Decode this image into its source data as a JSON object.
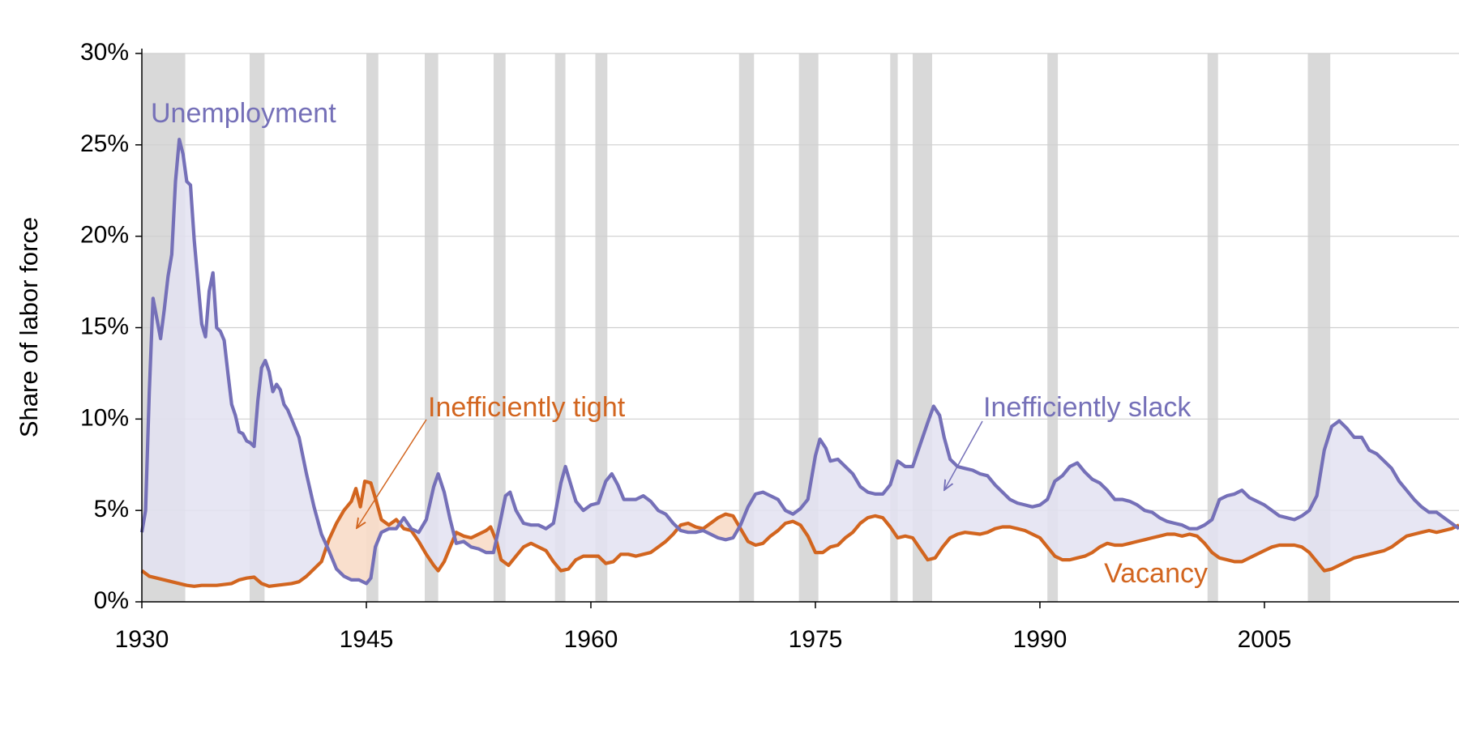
{
  "chart_data": {
    "type": "line",
    "y_label": "Share of labor force",
    "xlim": [
      1930,
      2018
    ],
    "ylim": [
      0,
      30
    ],
    "xticks": [
      1930,
      1945,
      1960,
      1975,
      1990,
      2005
    ],
    "yticks": [
      {
        "value": 0,
        "label": "0%"
      },
      {
        "value": 5,
        "label": "5%"
      },
      {
        "value": 10,
        "label": "10%"
      },
      {
        "value": 15,
        "label": "15%"
      },
      {
        "value": 20,
        "label": "20%"
      },
      {
        "value": 25,
        "label": "25%"
      },
      {
        "value": 30,
        "label": "30%"
      }
    ],
    "grid": true,
    "recession_color": "#d9d9d9",
    "recessions": [
      [
        1930.0,
        1932.9
      ],
      [
        1937.2,
        1938.2
      ],
      [
        1945.0,
        1945.8
      ],
      [
        1948.9,
        1949.8
      ],
      [
        1953.5,
        1954.3
      ],
      [
        1957.6,
        1958.3
      ],
      [
        1960.3,
        1961.1
      ],
      [
        1969.9,
        1970.9
      ],
      [
        1973.9,
        1975.2
      ],
      [
        1980.0,
        1980.5
      ],
      [
        1981.5,
        1982.8
      ],
      [
        1990.5,
        1991.2
      ],
      [
        2001.2,
        2001.9
      ],
      [
        2007.9,
        2009.4
      ]
    ],
    "slack_fill": "#e3e2f1",
    "tight_fill": "#f8dcc8",
    "series": [
      {
        "name": "Unemployment",
        "color": "#7570b8",
        "x": [
          1930.0,
          1930.25,
          1930.5,
          1930.75,
          1931.0,
          1931.25,
          1931.5,
          1931.75,
          1932.0,
          1932.25,
          1932.5,
          1932.75,
          1933.0,
          1933.25,
          1933.5,
          1933.75,
          1934.0,
          1934.25,
          1934.5,
          1934.75,
          1935.0,
          1935.25,
          1935.5,
          1935.75,
          1936.0,
          1936.25,
          1936.5,
          1936.75,
          1937.0,
          1937.25,
          1937.5,
          1937.75,
          1938.0,
          1938.25,
          1938.5,
          1938.75,
          1939.0,
          1939.25,
          1939.5,
          1939.75,
          1940.0,
          1940.5,
          1941.0,
          1941.5,
          1942.0,
          1942.5,
          1943.0,
          1943.5,
          1944.0,
          1944.5,
          1945.0,
          1945.3,
          1945.6,
          1946.0,
          1946.5,
          1947.0,
          1947.5,
          1948.0,
          1948.5,
          1949.0,
          1949.5,
          1949.8,
          1950.2,
          1950.6,
          1951.0,
          1951.5,
          1952.0,
          1952.5,
          1953.0,
          1953.5,
          1953.9,
          1954.3,
          1954.6,
          1955.0,
          1955.5,
          1956.0,
          1956.5,
          1957.0,
          1957.5,
          1958.0,
          1958.3,
          1958.7,
          1959.0,
          1959.5,
          1960.0,
          1960.5,
          1961.0,
          1961.4,
          1961.8,
          1962.2,
          1963.0,
          1963.5,
          1964.0,
          1964.5,
          1965.0,
          1965.5,
          1966.0,
          1966.5,
          1967.0,
          1967.5,
          1968.0,
          1968.5,
          1969.0,
          1969.5,
          1970.0,
          1970.5,
          1971.0,
          1971.5,
          1972.0,
          1972.5,
          1973.0,
          1973.5,
          1974.0,
          1974.5,
          1975.0,
          1975.3,
          1975.7,
          1976.0,
          1976.5,
          1977.0,
          1977.5,
          1978.0,
          1978.5,
          1979.0,
          1979.5,
          1980.0,
          1980.5,
          1981.0,
          1981.5,
          1982.0,
          1982.5,
          1982.9,
          1983.3,
          1983.6,
          1984.0,
          1984.5,
          1985.0,
          1985.5,
          1986.0,
          1986.5,
          1987.0,
          1987.5,
          1988.0,
          1988.5,
          1989.0,
          1989.5,
          1990.0,
          1990.5,
          1991.0,
          1991.5,
          1992.0,
          1992.5,
          1993.0,
          1993.5,
          1994.0,
          1994.5,
          1995.0,
          1995.5,
          1996.0,
          1996.5,
          1997.0,
          1997.5,
          1998.0,
          1998.5,
          1999.0,
          1999.5,
          2000.0,
          2000.5,
          2001.0,
          2001.5,
          2002.0,
          2002.5,
          2003.0,
          2003.5,
          2004.0,
          2004.5,
          2005.0,
          2005.5,
          2006.0,
          2006.5,
          2007.0,
          2007.5,
          2008.0,
          2008.5,
          2009.0,
          2009.5,
          2010.0,
          2010.5,
          2011.0,
          2011.5,
          2012.0,
          2012.5,
          2013.0,
          2013.5,
          2014.0,
          2014.5,
          2015.0,
          2015.5,
          2016.0,
          2016.5,
          2017.0,
          2017.5,
          2018.0
        ],
        "values": [
          3.8,
          5.0,
          11.5,
          16.6,
          15.5,
          14.4,
          16.0,
          17.8,
          19.0,
          23.0,
          25.3,
          24.5,
          23.0,
          22.8,
          19.8,
          17.5,
          15.2,
          14.5,
          17.0,
          18.0,
          15.0,
          14.8,
          14.3,
          12.5,
          10.8,
          10.2,
          9.3,
          9.2,
          8.8,
          8.7,
          8.5,
          11.0,
          12.8,
          13.2,
          12.6,
          11.5,
          11.9,
          11.6,
          10.8,
          10.5,
          10.0,
          9.0,
          7.0,
          5.2,
          3.7,
          2.8,
          1.8,
          1.4,
          1.2,
          1.2,
          1.0,
          1.3,
          3.0,
          3.8,
          4.0,
          4.0,
          4.6,
          4.0,
          3.8,
          4.5,
          6.3,
          7.0,
          6.0,
          4.5,
          3.2,
          3.3,
          3.0,
          2.9,
          2.7,
          2.7,
          4.2,
          5.8,
          6.0,
          5.0,
          4.3,
          4.2,
          4.2,
          4.0,
          4.3,
          6.5,
          7.4,
          6.3,
          5.5,
          5.0,
          5.3,
          5.4,
          6.6,
          7.0,
          6.4,
          5.6,
          5.6,
          5.8,
          5.5,
          5.0,
          4.8,
          4.3,
          3.9,
          3.8,
          3.8,
          3.9,
          3.7,
          3.5,
          3.4,
          3.5,
          4.2,
          5.2,
          5.9,
          6.0,
          5.8,
          5.6,
          5.0,
          4.8,
          5.1,
          5.6,
          8.0,
          8.9,
          8.4,
          7.7,
          7.8,
          7.4,
          7.0,
          6.3,
          6.0,
          5.9,
          5.9,
          6.4,
          7.7,
          7.4,
          7.4,
          8.6,
          9.8,
          10.7,
          10.2,
          9.0,
          7.8,
          7.4,
          7.3,
          7.2,
          7.0,
          6.9,
          6.4,
          6.0,
          5.6,
          5.4,
          5.3,
          5.2,
          5.3,
          5.6,
          6.6,
          6.9,
          7.4,
          7.6,
          7.1,
          6.7,
          6.5,
          6.1,
          5.6,
          5.6,
          5.5,
          5.3,
          5.0,
          4.9,
          4.6,
          4.4,
          4.3,
          4.2,
          4.0,
          4.0,
          4.2,
          4.5,
          5.6,
          5.8,
          5.9,
          6.1,
          5.7,
          5.5,
          5.3,
          5.0,
          4.7,
          4.6,
          4.5,
          4.7,
          5.0,
          5.8,
          8.3,
          9.6,
          9.9,
          9.5,
          9.0,
          9.0,
          8.3,
          8.1,
          7.7,
          7.3,
          6.6,
          6.1,
          5.6,
          5.2,
          4.9,
          4.9,
          4.6,
          4.3,
          4.0
        ]
      },
      {
        "name": "Vacancy",
        "color": "#d2651f",
        "x": [
          1930.0,
          1930.5,
          1931.0,
          1932.0,
          1932.5,
          1933.0,
          1933.5,
          1934.0,
          1935.0,
          1935.5,
          1936.0,
          1936.5,
          1937.0,
          1937.5,
          1938.0,
          1938.5,
          1939.0,
          1939.5,
          1940.0,
          1940.5,
          1941.0,
          1941.5,
          1942.0,
          1942.5,
          1943.0,
          1943.5,
          1944.0,
          1944.3,
          1944.6,
          1944.9,
          1945.3,
          1945.7,
          1946.0,
          1946.5,
          1947.0,
          1947.5,
          1948.0,
          1948.5,
          1949.0,
          1949.5,
          1949.8,
          1950.2,
          1950.6,
          1951.0,
          1951.5,
          1952.0,
          1952.5,
          1953.0,
          1953.3,
          1953.7,
          1954.0,
          1954.5,
          1955.0,
          1955.5,
          1956.0,
          1956.5,
          1957.0,
          1957.5,
          1958.0,
          1958.5,
          1959.0,
          1959.5,
          1960.0,
          1960.5,
          1961.0,
          1961.5,
          1962.0,
          1962.5,
          1963.0,
          1963.5,
          1964.0,
          1964.5,
          1965.0,
          1965.5,
          1966.0,
          1966.5,
          1967.0,
          1967.5,
          1968.0,
          1968.5,
          1969.0,
          1969.5,
          1970.0,
          1970.5,
          1971.0,
          1971.5,
          1972.0,
          1972.5,
          1973.0,
          1973.5,
          1974.0,
          1974.5,
          1975.0,
          1975.5,
          1976.0,
          1976.5,
          1977.0,
          1977.5,
          1978.0,
          1978.5,
          1979.0,
          1979.5,
          1980.0,
          1980.5,
          1981.0,
          1981.5,
          1982.0,
          1982.5,
          1983.0,
          1983.5,
          1984.0,
          1984.5,
          1985.0,
          1986.0,
          1986.5,
          1987.0,
          1987.5,
          1988.0,
          1988.5,
          1989.0,
          1989.5,
          1990.0,
          1990.5,
          1991.0,
          1991.5,
          1992.0,
          1992.5,
          1993.0,
          1993.5,
          1994.0,
          1994.5,
          1995.0,
          1995.5,
          1996.0,
          1996.5,
          1997.0,
          1997.5,
          1998.0,
          1998.5,
          1999.0,
          1999.5,
          2000.0,
          2000.5,
          2001.0,
          2001.5,
          2002.0,
          2002.5,
          2003.0,
          2003.5,
          2004.0,
          2004.5,
          2005.0,
          2005.5,
          2006.0,
          2006.5,
          2007.0,
          2007.5,
          2008.0,
          2008.5,
          2009.0,
          2009.5,
          2010.0,
          2010.5,
          2011.0,
          2011.5,
          2012.0,
          2012.5,
          2013.0,
          2013.5,
          2014.0,
          2014.5,
          2015.0,
          2015.5,
          2016.0,
          2016.5,
          2017.0,
          2017.5,
          2018.0
        ],
        "values": [
          1.7,
          1.4,
          1.3,
          1.1,
          1.0,
          0.9,
          0.85,
          0.9,
          0.9,
          0.95,
          1.0,
          1.2,
          1.3,
          1.35,
          1.0,
          0.85,
          0.9,
          0.95,
          1.0,
          1.1,
          1.4,
          1.8,
          2.2,
          3.4,
          4.3,
          5.0,
          5.5,
          6.2,
          5.2,
          6.6,
          6.5,
          5.4,
          4.5,
          4.2,
          4.5,
          4.0,
          3.9,
          3.3,
          2.6,
          2.0,
          1.7,
          2.2,
          3.0,
          3.8,
          3.6,
          3.5,
          3.7,
          3.9,
          4.1,
          3.3,
          2.3,
          2.0,
          2.5,
          3.0,
          3.2,
          3.0,
          2.8,
          2.2,
          1.7,
          1.8,
          2.3,
          2.5,
          2.5,
          2.5,
          2.1,
          2.2,
          2.6,
          2.6,
          2.5,
          2.6,
          2.7,
          3.0,
          3.3,
          3.7,
          4.2,
          4.3,
          4.1,
          4.0,
          4.3,
          4.6,
          4.8,
          4.7,
          4.0,
          3.3,
          3.1,
          3.2,
          3.6,
          3.9,
          4.3,
          4.4,
          4.2,
          3.6,
          2.7,
          2.7,
          3.0,
          3.1,
          3.5,
          3.8,
          4.3,
          4.6,
          4.7,
          4.6,
          4.1,
          3.5,
          3.6,
          3.5,
          2.9,
          2.3,
          2.4,
          3.0,
          3.5,
          3.7,
          3.8,
          3.7,
          3.8,
          4.0,
          4.1,
          4.1,
          4.0,
          3.9,
          3.7,
          3.5,
          3.0,
          2.5,
          2.3,
          2.3,
          2.4,
          2.5,
          2.7,
          3.0,
          3.2,
          3.1,
          3.1,
          3.2,
          3.3,
          3.4,
          3.5,
          3.6,
          3.7,
          3.7,
          3.6,
          3.7,
          3.6,
          3.2,
          2.7,
          2.4,
          2.3,
          2.2,
          2.2,
          2.4,
          2.6,
          2.8,
          3.0,
          3.1,
          3.1,
          3.1,
          3.0,
          2.7,
          2.2,
          1.7,
          1.8,
          2.0,
          2.2,
          2.4,
          2.5,
          2.6,
          2.7,
          2.8,
          3.0,
          3.3,
          3.6,
          3.7,
          3.8,
          3.9,
          3.8,
          3.9,
          4.0,
          4.2
        ]
      }
    ],
    "annotations": [
      {
        "text": "Unemployment",
        "color": "#7570b8"
      },
      {
        "text": "Inefficiently tight",
        "color": "#d2651f"
      },
      {
        "text": "Inefficiently slack",
        "color": "#7570b8"
      },
      {
        "text": "Vacancy",
        "color": "#d2651f"
      }
    ]
  }
}
